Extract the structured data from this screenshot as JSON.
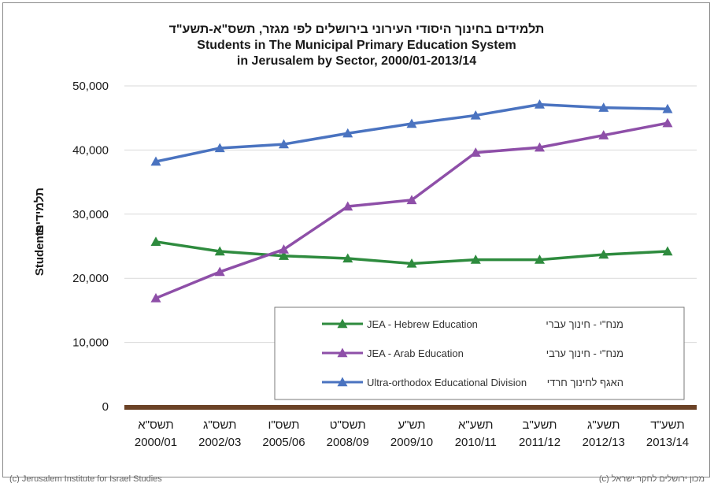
{
  "chart_data": {
    "type": "line",
    "title": [
      "תלמידים בחינוך היסודי העירוני בירושלים לפי מגזר, תשס\"א-תשע\"ד",
      "Students in The Municipal Primary Education System",
      "in Jerusalem by Sector, 2000/01-2013/14"
    ],
    "ylabel_en": "Students",
    "ylabel_he": "תלמידים",
    "ylim": [
      0,
      50000
    ],
    "yticks": [
      "0",
      "10,000",
      "20,000",
      "30,000",
      "40,000",
      "50,000"
    ],
    "ytick_values": [
      0,
      10000,
      20000,
      30000,
      40000,
      50000
    ],
    "grid": true,
    "legend_position": "bottom-right",
    "categories_he": [
      "תשס\"א",
      "תשס\"ג",
      "תשס\"ו",
      "תשס\"ט",
      "תש\"ע",
      "תשע\"א",
      "תשע\"ב",
      "תשע\"ג",
      "תשע\"ד"
    ],
    "categories": [
      "2000/01",
      "2002/03",
      "2005/06",
      "2008/09",
      "2009/10",
      "2010/11",
      "2011/12",
      "2012/13",
      "2013/14"
    ],
    "series": [
      {
        "name": "JEA - Hebrew Education",
        "name_he": "מנח\"י - חינוך עברי",
        "color": "#2e8b3e",
        "values": [
          25700,
          24200,
          23500,
          23100,
          22300,
          22900,
          22900,
          23700,
          24200
        ]
      },
      {
        "name": "JEA - Arab Education",
        "name_he": "מנח\"י - חינוך ערבי",
        "color": "#8e4fa8",
        "values": [
          16900,
          21000,
          24500,
          31200,
          32200,
          39600,
          40400,
          42300,
          44200
        ]
      },
      {
        "name": "Ultra-orthodox Educational Division",
        "name_he": "האגף לחינוך חרדי",
        "color": "#4a73c0",
        "values": [
          38200,
          40300,
          40900,
          42600,
          44100,
          45400,
          47100,
          46600,
          46400
        ]
      }
    ]
  },
  "footer": {
    "left": "(c) Jerusalem Institute for Israel Studies",
    "right": "(c) מכון ירושלים לחקר ישראל"
  },
  "colors": {
    "axis_bar": "#6b4226",
    "grid": "#d9d9d9"
  }
}
